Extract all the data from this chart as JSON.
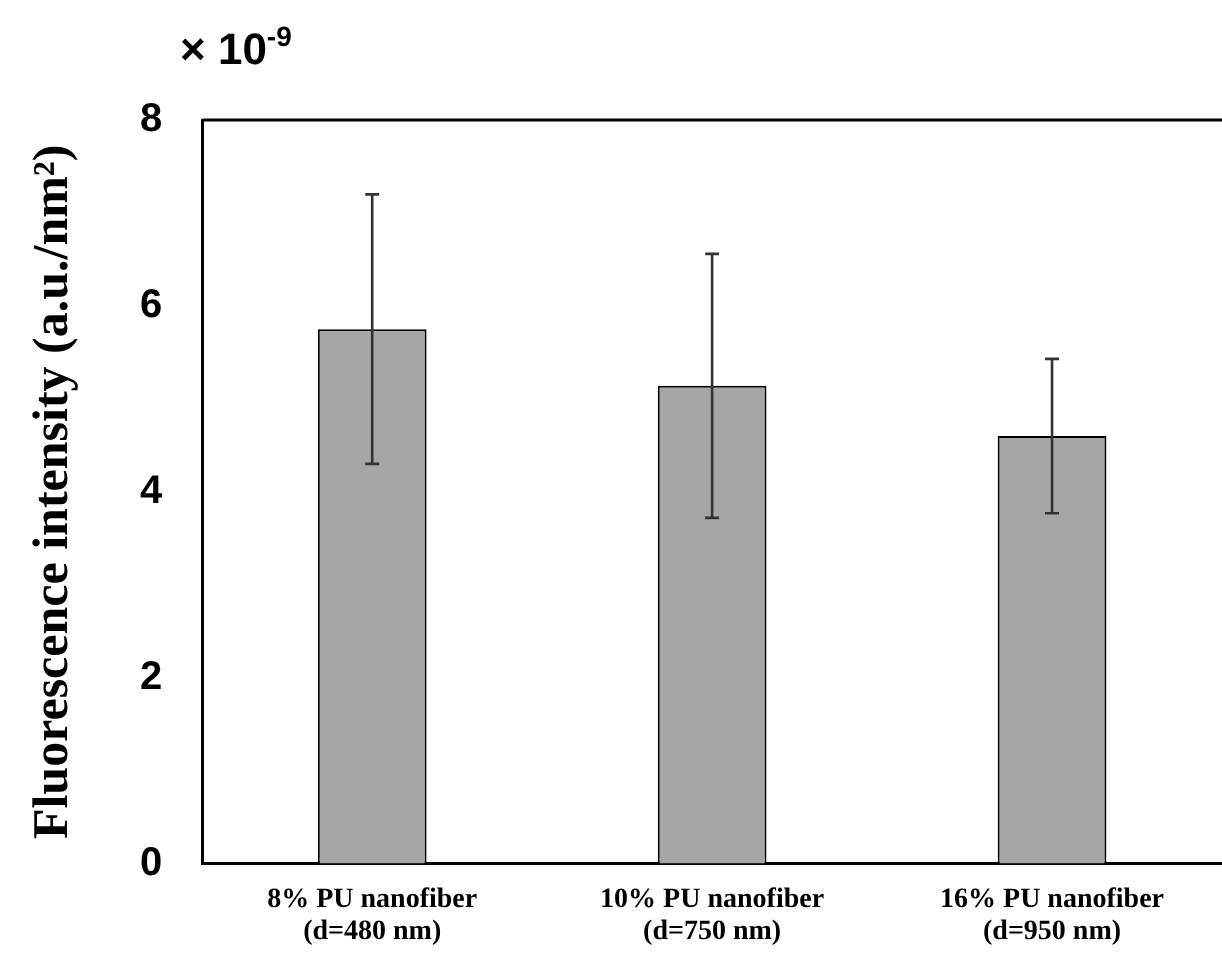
{
  "chart_data": {
    "type": "bar",
    "ylabel": "Fluorescence intensity (a.u./nm²)",
    "annotations": [
      "× 10$^{-9}$"
    ],
    "categories": [
      "8% PU nanofiber\n(d=480 nm)",
      "10% PU nanofiber\n(d=750 nm)",
      "16% PU nanofiber\n(d=950 nm)"
    ],
    "values": [
      5.75,
      5.14,
      4.6
    ],
    "errors": [
      1.45,
      1.42,
      0.83
    ],
    "color": "#a6a6a6",
    "ylim": [
      0,
      8
    ],
    "yticks": [
      0,
      2,
      4,
      6,
      8
    ],
    "grid": false,
    "legend": false
  }
}
